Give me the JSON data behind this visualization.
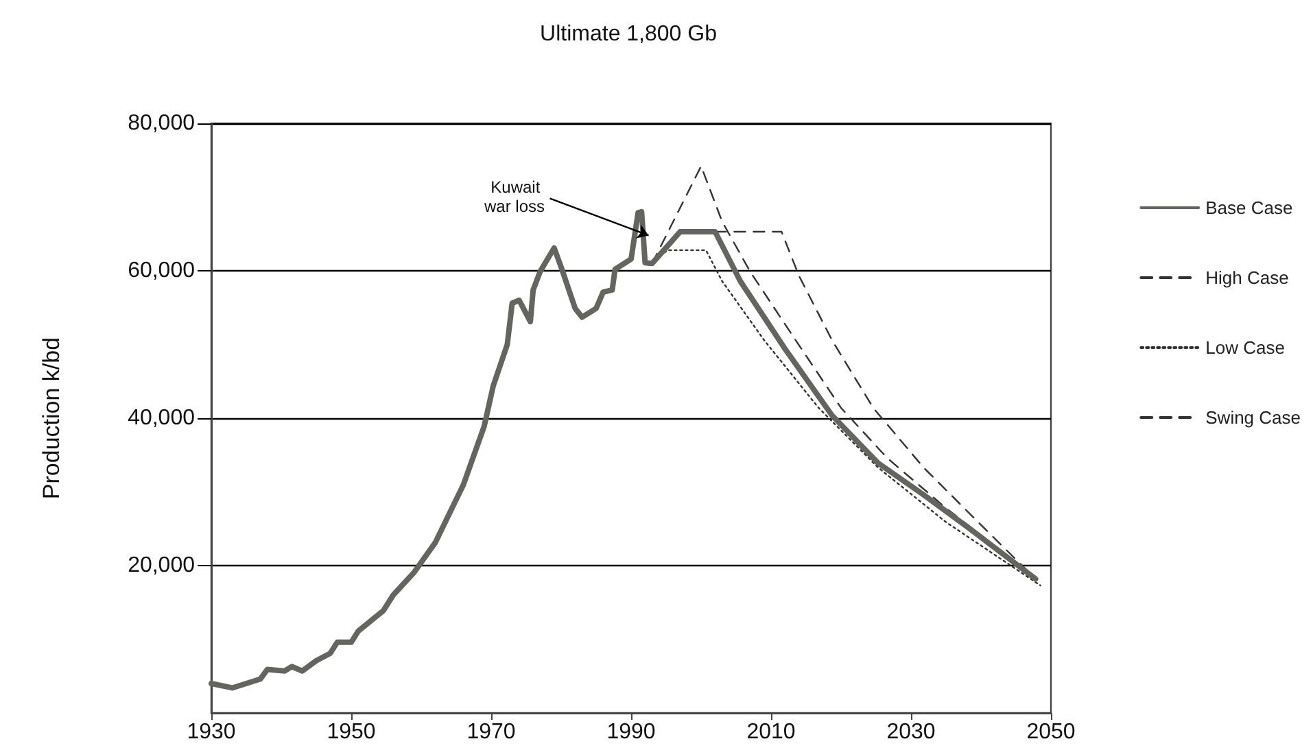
{
  "chart_data": {
    "type": "line",
    "title": "Ultimate 1,800 Gb",
    "ylabel": "Production k/bd",
    "xlim": [
      1930,
      2050
    ],
    "xticks": [
      1930,
      1950,
      1970,
      1990,
      2010,
      2030,
      2050
    ],
    "ylim": [
      0,
      80000
    ],
    "yticks": [
      {
        "value": 20000,
        "label": "20,000"
      },
      {
        "value": 40000,
        "label": "40,000"
      },
      {
        "value": 60000,
        "label": "60,000"
      },
      {
        "value": 80000,
        "label": "80,000"
      }
    ],
    "grid": "y",
    "legend": "right",
    "marker": "none",
    "annotations": [
      {
        "text": "Kuwait war loss",
        "x": 1992.5,
        "y": 64800
      }
    ],
    "series": [
      {
        "name": "Base Case",
        "color": "#656560",
        "line_style": "solid",
        "x": [
          1930,
          1933,
          1937,
          1938,
          1940.5,
          1941.5,
          1943,
          1945,
          1947,
          1948,
          1950,
          1951,
          1954.6,
          1956,
          1959,
          1962,
          1966,
          1969,
          1970.3,
          1972.3,
          1973,
          1974,
          1975.6,
          1976,
          1977,
          1979,
          1980,
          1982,
          1983,
          1985,
          1986,
          1987.3,
          1987.7,
          1990,
          1991,
          1991.5,
          1992,
          1993,
          1997,
          2002,
          2005.6,
          2012,
          2018.7,
          2025.3,
          2031.8,
          2038.4,
          2047.8
        ],
        "values": [
          4000,
          3400,
          4600,
          5900,
          5700,
          6300,
          5700,
          7100,
          8100,
          9600,
          9600,
          11100,
          13900,
          16000,
          19100,
          23100,
          30900,
          38900,
          44400,
          50000,
          55600,
          56000,
          53100,
          57400,
          59900,
          63100,
          60500,
          54900,
          53700,
          54900,
          57100,
          57400,
          60200,
          61600,
          67900,
          68000,
          61100,
          61000,
          65300,
          65300,
          58600,
          49400,
          40400,
          33900,
          29600,
          25000,
          18200
        ]
      },
      {
        "name": "High Case",
        "color": "#333333",
        "line_style": "dashed",
        "x": [
          1993,
          2000,
          2003,
          2007,
          2013.5,
          2020,
          2026.6,
          2035,
          2048
        ],
        "values": [
          61000,
          74200,
          66700,
          59900,
          50600,
          41400,
          34600,
          27800,
          18200
        ]
      },
      {
        "name": "Low Case",
        "color": "#333333",
        "line_style": "dotted",
        "x": [
          1993,
          1995.2,
          2000.7,
          2003,
          2009,
          2016.8,
          2025.3,
          2035,
          2048.5
        ],
        "values": [
          61000,
          62800,
          62800,
          58600,
          50600,
          41400,
          33300,
          25900,
          17300
        ]
      },
      {
        "name": "Swing Case",
        "color": "#333333",
        "line_style": "dashed",
        "x": [
          2002,
          2011.5,
          2014,
          2018.7,
          2024.6,
          2031.8,
          2039.6,
          2048
        ],
        "values": [
          65300,
          65300,
          59300,
          50600,
          41400,
          33300,
          25900,
          18000
        ]
      }
    ]
  }
}
